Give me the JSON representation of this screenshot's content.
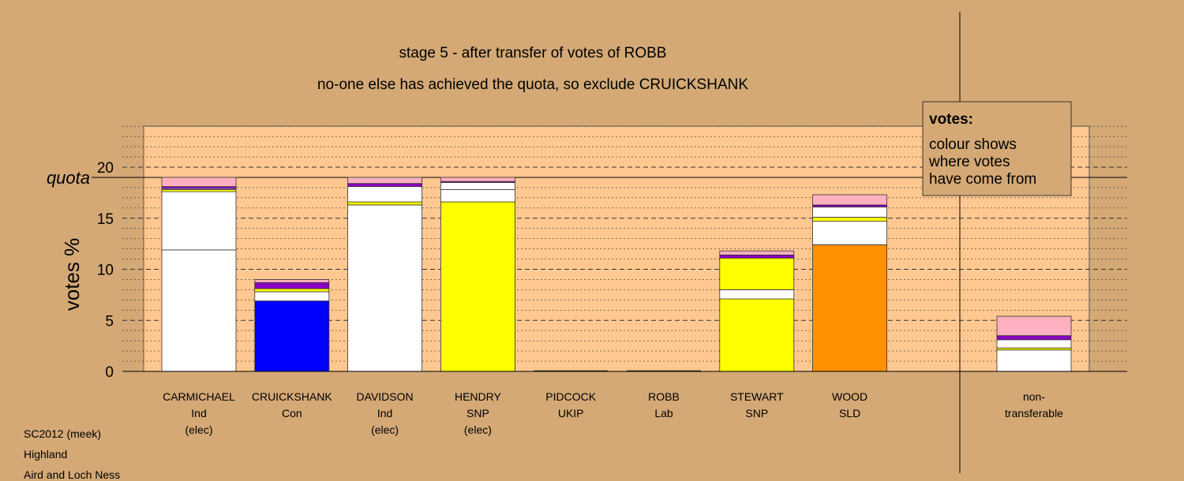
{
  "chart_data": {
    "type": "bar",
    "stacked": true,
    "title": "stage 5 - after transfer of votes of ROBB",
    "subtitle": "no-one else has achieved the quota, so exclude CRUICKSHANK",
    "ylabel": "votes %",
    "ylim": [
      0,
      24
    ],
    "yticks": [
      0,
      5,
      10,
      15,
      20
    ],
    "quota": 19,
    "quota_label": "quota",
    "grid": true,
    "categories": [
      {
        "name": "CARMICHAEL",
        "party": "Ind",
        "status": "(elec)"
      },
      {
        "name": "CRUICKSHANK",
        "party": "Con",
        "status": ""
      },
      {
        "name": "DAVIDSON",
        "party": "Ind",
        "status": "(elec)"
      },
      {
        "name": "HENDRY",
        "party": "SNP",
        "status": "(elec)"
      },
      {
        "name": "PIDCOCK",
        "party": "UKIP",
        "status": ""
      },
      {
        "name": "ROBB",
        "party": "Lab",
        "status": ""
      },
      {
        "name": "STEWART",
        "party": "SNP",
        "status": ""
      },
      {
        "name": "WOOD",
        "party": "SLD",
        "status": ""
      }
    ],
    "stacks": [
      [
        {
          "value": 11.9,
          "color": "#ffffff"
        },
        {
          "value": 5.7,
          "color": "#ffffff"
        },
        {
          "value": 0.2,
          "color": "#ffff00"
        },
        {
          "value": 0.1,
          "color": "#ffffff"
        },
        {
          "value": 0.2,
          "color": "#8b00c4"
        },
        {
          "value": 0.9,
          "color": "#ffb0c0"
        }
      ],
      [
        {
          "value": 6.9,
          "color": "#0000ff"
        },
        {
          "value": 0.9,
          "color": "#ffffff"
        },
        {
          "value": 0.3,
          "color": "#ffff00"
        },
        {
          "value": 0.6,
          "color": "#8b00c4"
        },
        {
          "value": 0.3,
          "color": "#ffb0c0"
        }
      ],
      [
        {
          "value": 16.3,
          "color": "#ffffff"
        },
        {
          "value": 0.3,
          "color": "#ffff00"
        },
        {
          "value": 1.5,
          "color": "#ffffff"
        },
        {
          "value": 0.3,
          "color": "#8b00c4"
        },
        {
          "value": 0.6,
          "color": "#ffb0c0"
        }
      ],
      [
        {
          "value": 16.6,
          "color": "#ffff00"
        },
        {
          "value": 1.2,
          "color": "#ffffff"
        },
        {
          "value": 0.7,
          "color": "#ffffff"
        },
        {
          "value": 0.1,
          "color": "#8b00c4"
        },
        {
          "value": 0.4,
          "color": "#ffb0c0"
        }
      ],
      [],
      [],
      [
        {
          "value": 7.1,
          "color": "#ffff00"
        },
        {
          "value": 0.9,
          "color": "#ffffff"
        },
        {
          "value": 3.1,
          "color": "#ffff00"
        },
        {
          "value": 0.3,
          "color": "#8b00c4"
        },
        {
          "value": 0.4,
          "color": "#ffb0c0"
        }
      ],
      [
        {
          "value": 12.4,
          "color": "#ff9000"
        },
        {
          "value": 2.3,
          "color": "#ffffff"
        },
        {
          "value": 0.4,
          "color": "#ffff00"
        },
        {
          "value": 1.0,
          "color": "#ffffff"
        },
        {
          "value": 0.2,
          "color": "#8b00c4"
        },
        {
          "value": 1.0,
          "color": "#ffb0c0"
        }
      ]
    ],
    "nontransferable": {
      "label_line1": "non-",
      "label_line2": "transferable",
      "stack": [
        {
          "value": 2.1,
          "color": "#ffffff"
        },
        {
          "value": 0.2,
          "color": "#ffff00"
        },
        {
          "value": 0.8,
          "color": "#ffffff"
        },
        {
          "value": 0.4,
          "color": "#8b00c4"
        },
        {
          "value": 1.9,
          "color": "#ffb0c0"
        }
      ]
    },
    "legend": {
      "title": "votes:",
      "lines": [
        "colour shows",
        "where votes",
        "have come from"
      ]
    },
    "colors": {
      "background": "#d4a976",
      "plot_background": "#ffc890"
    }
  },
  "footer": {
    "line1": "SC2012 (meek)",
    "line2": "Highland",
    "line3": "Aird and Loch Ness"
  }
}
